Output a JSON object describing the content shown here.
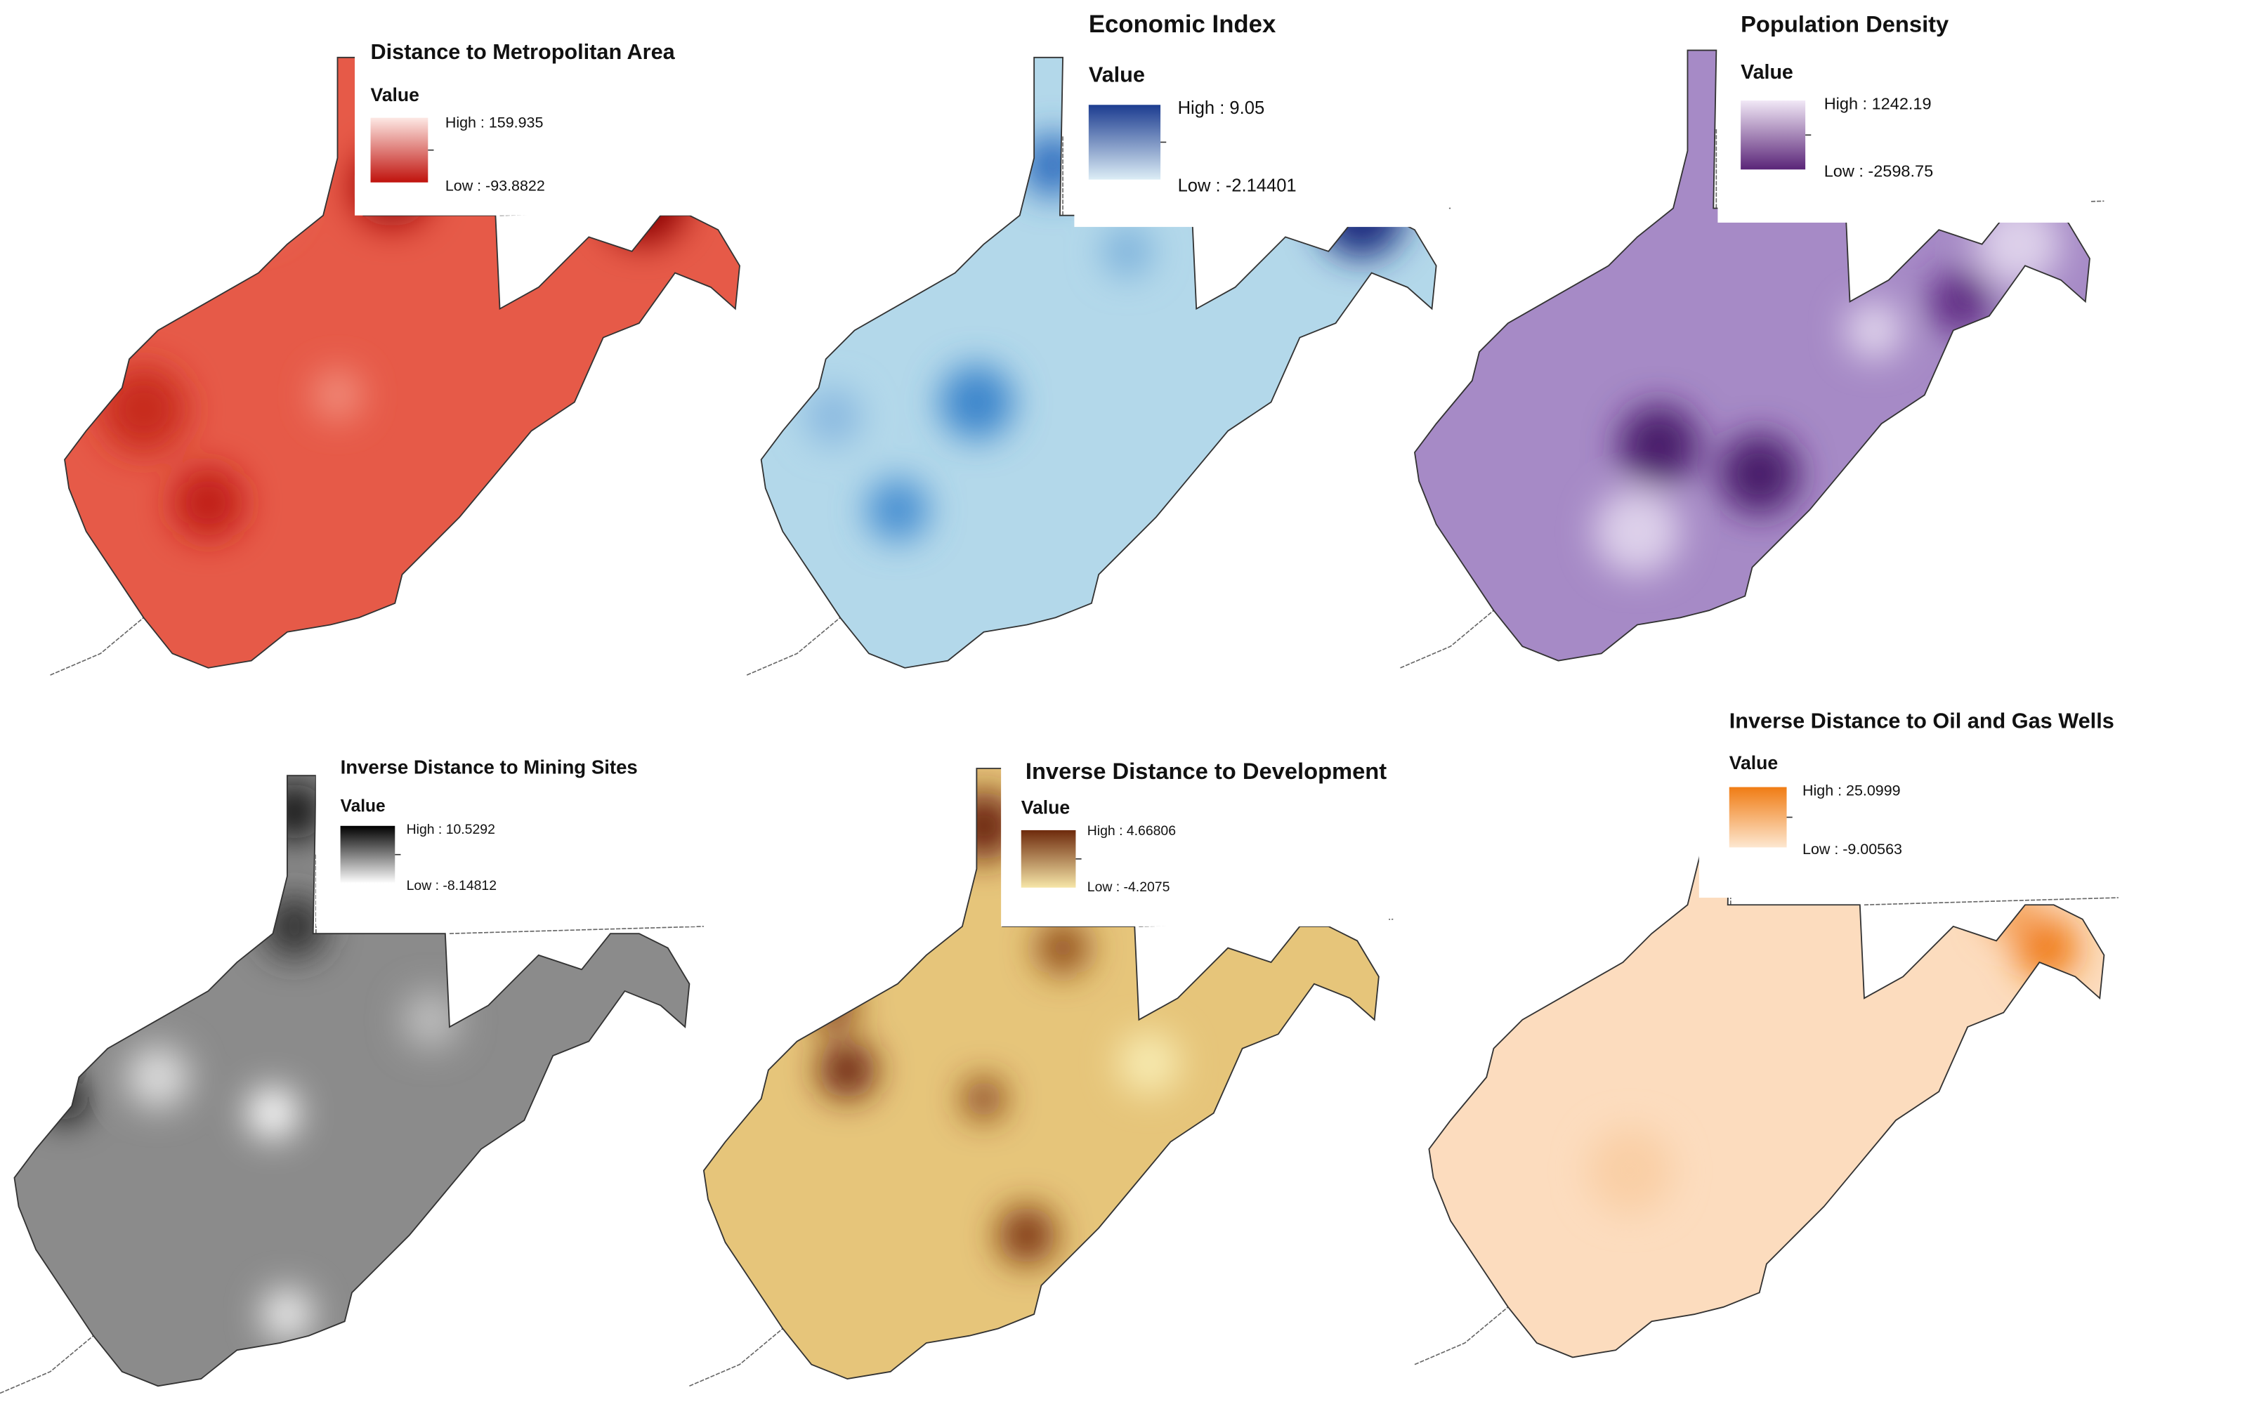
{
  "panels": [
    {
      "title": "Distance to Metropolitan Area",
      "legend_label": "Value",
      "high": "High : 159.935",
      "low": "Low : -93.8822"
    },
    {
      "title": "Economic Index",
      "legend_label": "Value",
      "high": "High : 9.05",
      "low": "Low : -2.14401"
    },
    {
      "title": "Population Density",
      "legend_label": "Value",
      "high": "High : 1242.19",
      "low": "Low : -2598.75"
    },
    {
      "title": "Inverse Distance to Mining Sites",
      "legend_label": "Value",
      "high": "High : 10.5292",
      "low": "Low : -8.14812"
    },
    {
      "title": "Inverse Distance to Development",
      "legend_label": "Value",
      "high": "High : 4.66806",
      "low": "Low : -4.2075"
    },
    {
      "title": "Inverse Distance to Oil and Gas Wells",
      "legend_label": "Value",
      "high": "High : 25.0999",
      "low": "Low : -9.00563"
    }
  ]
}
